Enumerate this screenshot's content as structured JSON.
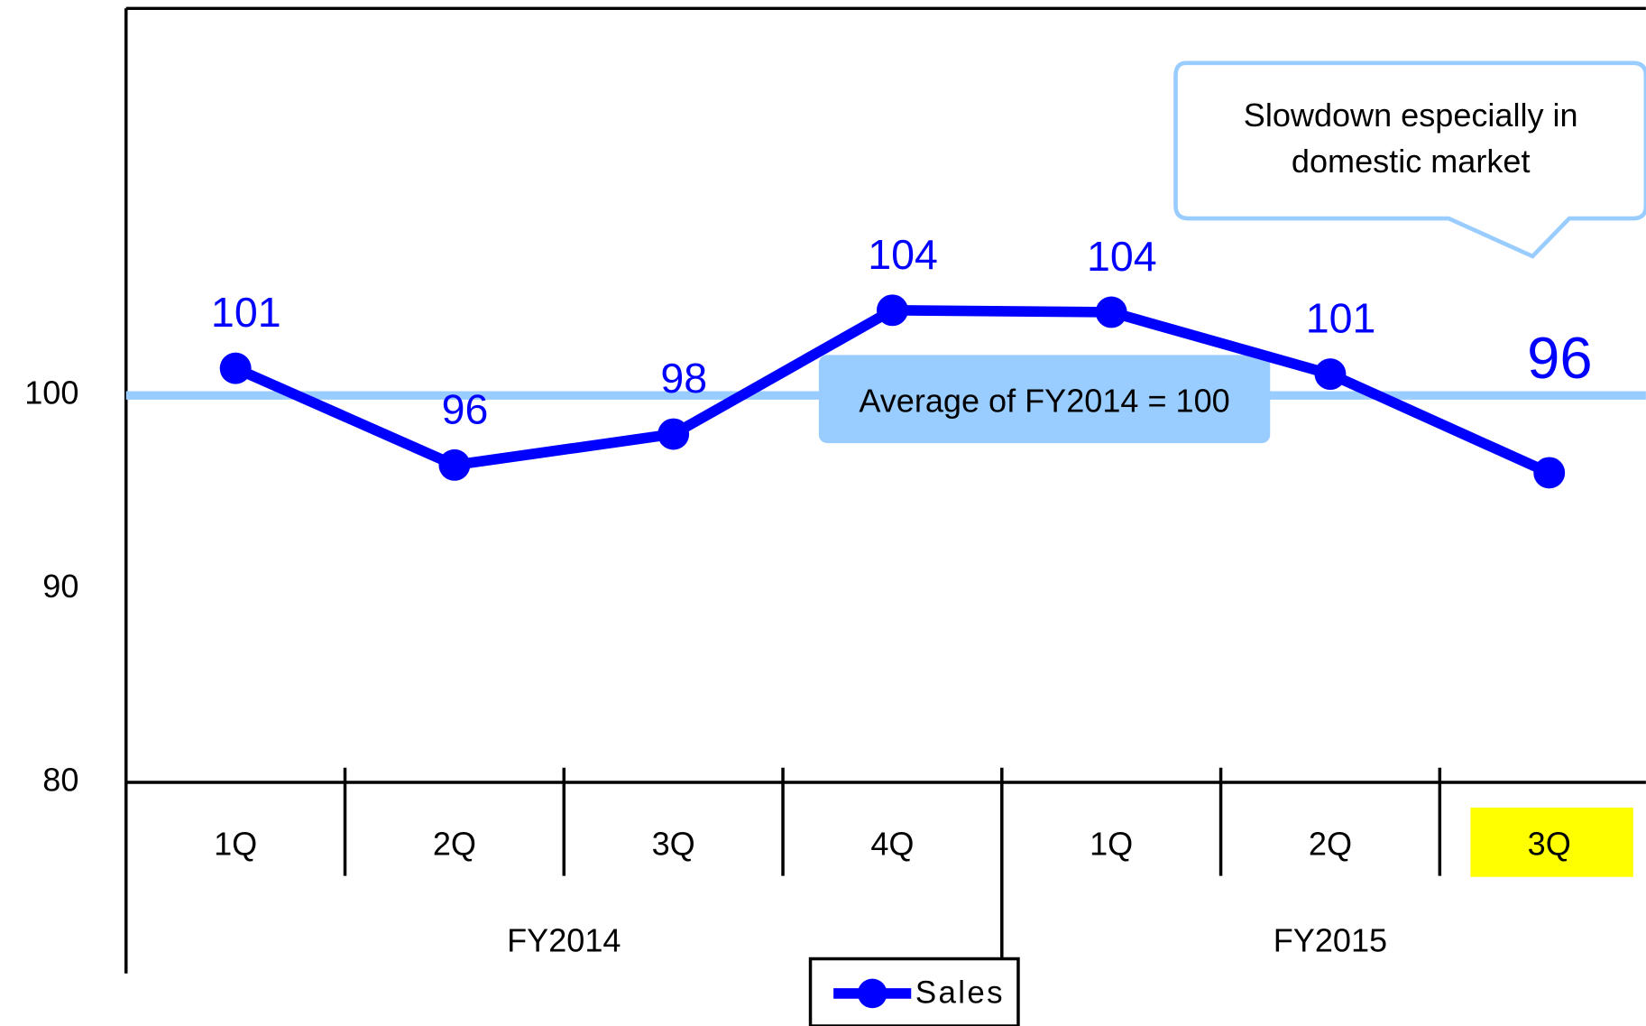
{
  "chart_data": {
    "type": "line",
    "groups": [
      {
        "name": "FY2014",
        "categories": [
          "1Q",
          "2Q",
          "3Q",
          "4Q"
        ]
      },
      {
        "name": "FY2015",
        "categories": [
          "1Q",
          "2Q",
          "3Q"
        ]
      }
    ],
    "series": [
      {
        "name": "Sales",
        "color": "#0000ff",
        "values": [
          101.4,
          96.4,
          98.0,
          104.4,
          104.3,
          101.1,
          96.0
        ],
        "value_labels": [
          "101",
          "96",
          "98",
          "104",
          "104",
          "101",
          "96"
        ]
      }
    ],
    "ylim": [
      80,
      120
    ],
    "yticks": [
      80,
      90,
      100
    ],
    "grid": false,
    "reference_line": {
      "value": 100,
      "label": "Average of FY2014 = 100",
      "color": "#99ccff"
    },
    "annotation": [
      "Slowdown especially in",
      "domestic market"
    ],
    "legend": "bottom"
  }
}
